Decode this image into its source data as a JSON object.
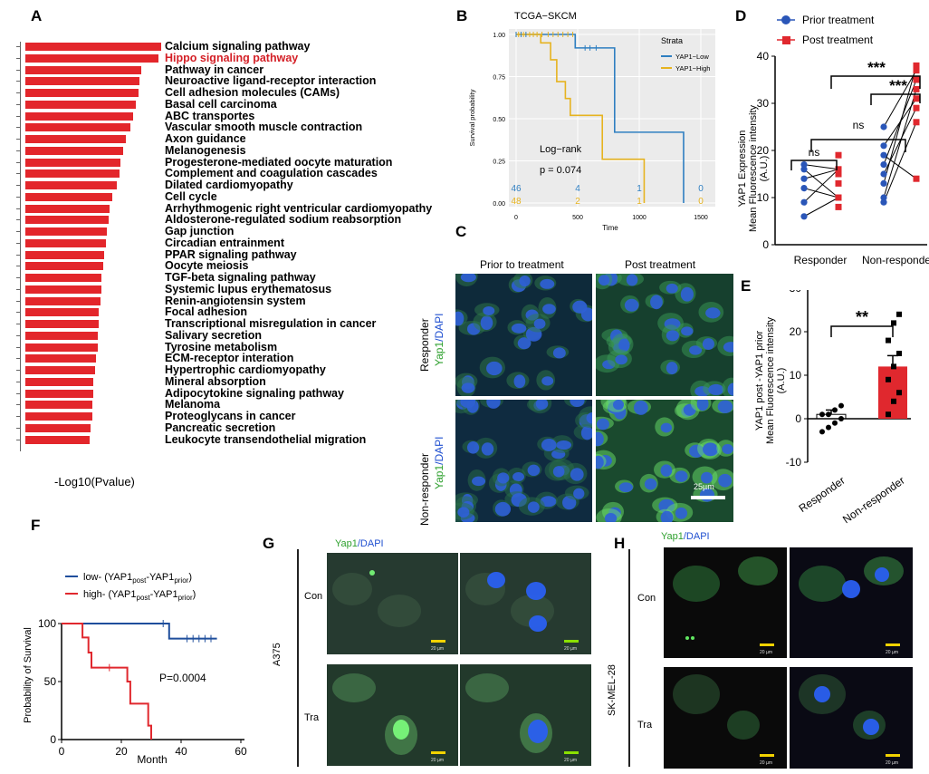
{
  "panels": {
    "A": "A",
    "B": "B",
    "C": "C",
    "D": "D",
    "E": "E",
    "F": "F",
    "G": "G",
    "H": "H"
  },
  "panelA": {
    "xlabel": "-Log10(Pvalue)",
    "pathways": [
      {
        "name": "Calcium signaling pathway",
        "value": 1.0
      },
      {
        "name": "Hippo signaling pathway",
        "value": 0.98,
        "highlight": true
      },
      {
        "name": "Pathway in cancer",
        "value": 0.85
      },
      {
        "name": "Neuroactive ligand-receptor interaction",
        "value": 0.84
      },
      {
        "name": "Cell adhesion molecules (CAMs)",
        "value": 0.83
      },
      {
        "name": "Basal cell carcinoma",
        "value": 0.81
      },
      {
        "name": "ABC transportes",
        "value": 0.79
      },
      {
        "name": "Vascular smooth muscle contraction",
        "value": 0.77
      },
      {
        "name": "Axon guidance",
        "value": 0.74
      },
      {
        "name": "Melanogenesis",
        "value": 0.72
      },
      {
        "name": "Progesterone-mediated oocyte maturation",
        "value": 0.7
      },
      {
        "name": "Complement and coagulation cascades",
        "value": 0.69
      },
      {
        "name": "Dilated cardiomyopathy",
        "value": 0.67
      },
      {
        "name": "Cell cycle",
        "value": 0.64
      },
      {
        "name": "Arrhythmogenic right ventricular cardiomyopathy",
        "value": 0.62
      },
      {
        "name": "Aldosterone-regulated sodium reabsorption",
        "value": 0.61
      },
      {
        "name": "Gap junction",
        "value": 0.6
      },
      {
        "name": "Circadian entrainment",
        "value": 0.59
      },
      {
        "name": "PPAR signaling pathway",
        "value": 0.58
      },
      {
        "name": "Oocyte meiosis",
        "value": 0.57
      },
      {
        "name": "TGF-beta signaling pathway",
        "value": 0.56
      },
      {
        "name": "Systemic lupus erythematosus",
        "value": 0.56
      },
      {
        "name": "Renin-angiotensin system",
        "value": 0.55
      },
      {
        "name": "Focal adhesion",
        "value": 0.54
      },
      {
        "name": "Transcriptional misregulation in cancer",
        "value": 0.54
      },
      {
        "name": "Salivary secretion",
        "value": 0.53
      },
      {
        "name": "Tyrosine metabolism",
        "value": 0.53
      },
      {
        "name": "ECM-receptor interation",
        "value": 0.52
      },
      {
        "name": "Hypertrophic cardiomyopathy",
        "value": 0.51
      },
      {
        "name": "Mineral absorption",
        "value": 0.5
      },
      {
        "name": "Adipocytokine signaling pathway",
        "value": 0.5
      },
      {
        "name": "Melanoma",
        "value": 0.49
      },
      {
        "name": "Proteoglycans in cancer",
        "value": 0.49
      },
      {
        "name": "Pancreatic secretion",
        "value": 0.48
      },
      {
        "name": "Leukocyte transendothelial migration",
        "value": 0.47
      }
    ]
  },
  "panelB": {
    "title": "TCGA−SKCM",
    "ylabel": "Survival probability",
    "xlabel": "Time",
    "legend_title": "Strata",
    "series": [
      {
        "name": "YAP1−Low",
        "color": "#2f7fc1"
      },
      {
        "name": "YAP1−High",
        "color": "#e6b320"
      }
    ],
    "stat_label": "Log−rank",
    "p_label": "p = 0.074",
    "yticks": [
      "1.00",
      "0.75",
      "0.50",
      "0.25",
      "0.00"
    ],
    "xticks": [
      "0",
      "500",
      "1000",
      "1500"
    ],
    "risk_low": [
      "46",
      "4",
      "1",
      "0"
    ],
    "risk_high": [
      "48",
      "2",
      "1",
      "0"
    ]
  },
  "panelC": {
    "col1": "Prior to treatment",
    "col2": "Post treatment",
    "row1": "Responder",
    "row2": "Non-responder",
    "stain_yap": "Yap1",
    "stain_dapi": "/DAPI",
    "scale": "25µm"
  },
  "panelD": {
    "legend_prior": "Prior treatment",
    "legend_post": "Post treatment",
    "ylabel1": "YAP1 Expression",
    "ylabel2": "Mean Fluorescence intensity",
    "ylabel3": "(A.U.)",
    "yticks": [
      "0",
      "10",
      "20",
      "30",
      "40"
    ],
    "groups": [
      "Responder",
      "Non-responder"
    ],
    "sig_ns1": "ns",
    "sig_ns2": "ns",
    "sig_top": "***",
    "sig_pair": "***",
    "chart_data": {
      "type": "scatter",
      "ylim": [
        0,
        40
      ],
      "responder_prior": [
        6,
        9,
        12,
        14,
        16,
        17
      ],
      "responder_post": [
        8,
        10,
        13,
        15,
        16,
        19
      ],
      "nonresponder_prior": [
        9,
        10,
        13,
        15,
        17,
        19,
        21,
        25
      ],
      "nonresponder_post": [
        14,
        26,
        29,
        31,
        33,
        35,
        37,
        38
      ]
    }
  },
  "panelE": {
    "ylabel1": "YAP1 post -YAP1 prior",
    "ylabel2": "Mean Fluorescence intensity",
    "ylabel3": "(A.U.)",
    "yticks": [
      "30",
      "20",
      "10",
      "0",
      "-10"
    ],
    "groups": [
      "Responder",
      "Non-responder"
    ],
    "sig": "**",
    "chart_data": {
      "type": "bar",
      "categories": [
        "Responder",
        "Non-responder"
      ],
      "values": [
        1,
        12
      ],
      "ylim": [
        -10,
        30
      ],
      "errors": [
        1,
        2.5
      ],
      "responder_points": [
        -3,
        -2,
        -1,
        0,
        1,
        1,
        2,
        3
      ],
      "nonresponder_points": [
        1,
        4,
        6,
        9,
        12,
        15,
        18,
        22,
        24
      ]
    }
  },
  "panelF": {
    "legend_low": "low- (YAP1",
    "legend_high": "high- (YAP1",
    "legend_post": "post",
    "legend_mid": "-YAP1",
    "legend_prior": "prior",
    "legend_end": ")",
    "ylabel": "Probability of Survival",
    "xlabel": "Month",
    "p_label": "P=0.0004",
    "yticks": [
      "100",
      "50",
      "0"
    ],
    "xticks": [
      "0",
      "20",
      "40",
      "60"
    ]
  },
  "panelG": {
    "yap": "Yap1",
    "dapi": "/DAPI",
    "cell_line": "A375",
    "row1": "Con",
    "row2": "Tra",
    "scale": "20 µm"
  },
  "panelH": {
    "yap": "Yap1",
    "dapi": "/DAPI",
    "cell_line": "SK-MEL-28",
    "row1": "Con",
    "row2": "Tra",
    "scale": "20 µm"
  }
}
